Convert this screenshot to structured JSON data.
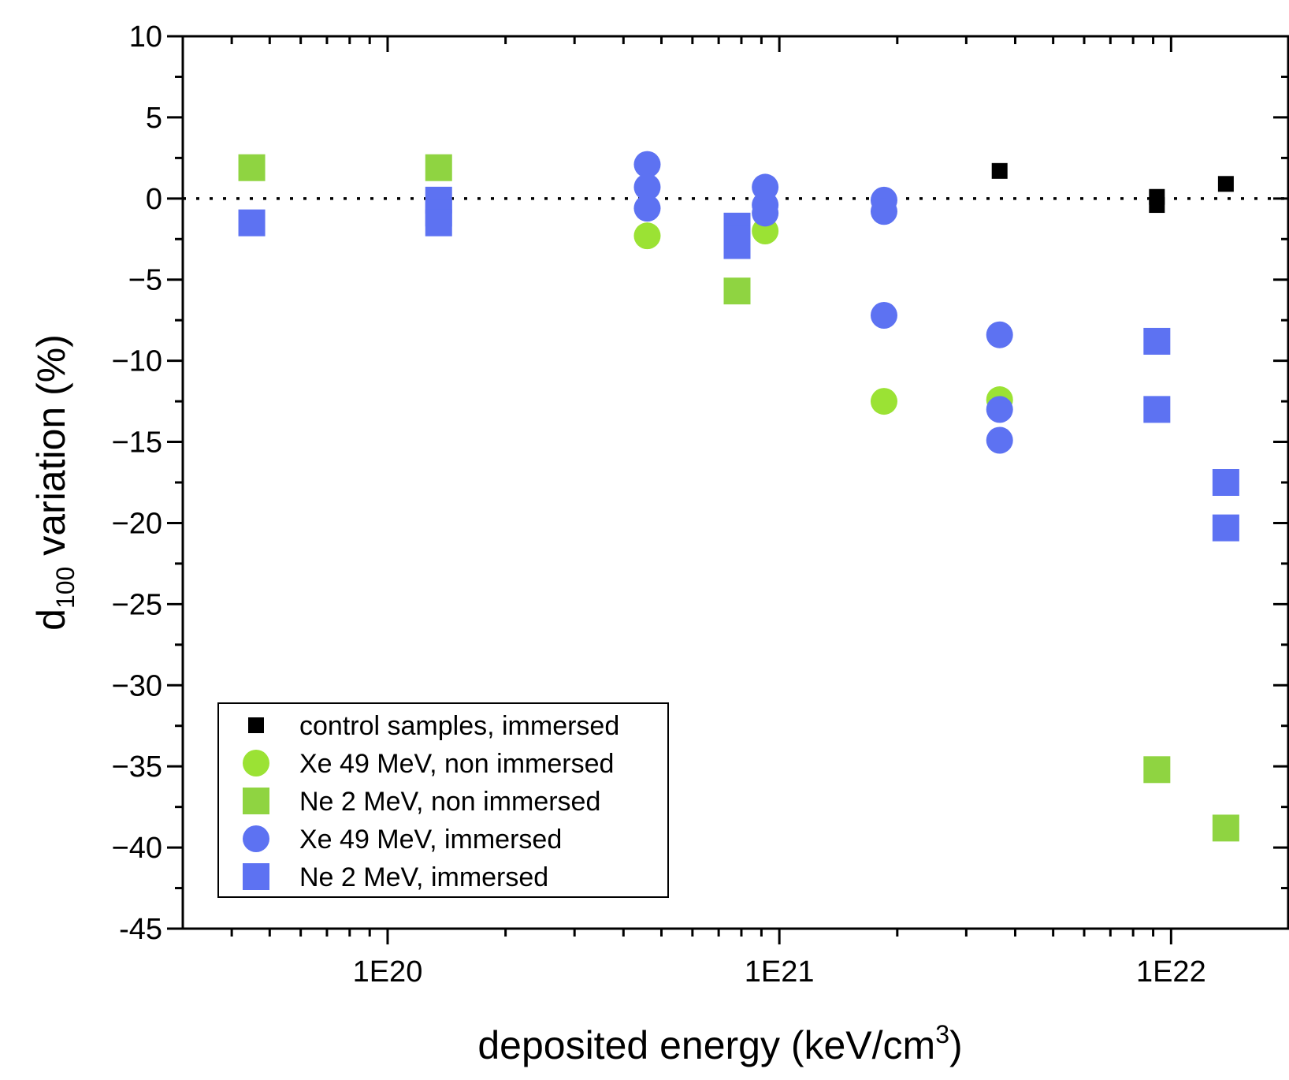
{
  "chart_data": {
    "type": "scatter",
    "xlabel": {
      "main": "deposited energy (keV/cm",
      "sup": "3",
      "tail": ")"
    },
    "ylabel": {
      "main": "d",
      "sub": "100",
      "tail": " variation (%)"
    },
    "x_scale": "log",
    "xlim": [
      3e+19,
      2e+22
    ],
    "ylim": [
      -45,
      10
    ],
    "x_ticks": [
      1e+20,
      1e+21,
      1e+22
    ],
    "x_tick_labels": [
      "1E20",
      "1E21",
      "1E22"
    ],
    "y_ticks": [
      10,
      5,
      0,
      -5,
      -10,
      -15,
      -20,
      -25,
      -30,
      -35,
      -40,
      -45
    ],
    "y_tick_labels": [
      "10",
      "5",
      "0",
      "−5",
      "−10",
      "−15",
      "−20",
      "−25",
      "−30",
      "−35",
      "−40",
      "-45"
    ],
    "reference_line": {
      "y": 0,
      "style": "dotted"
    },
    "legend_position": "bottom-left",
    "series": [
      {
        "name": "control samples, immersed",
        "marker": "square-small",
        "color": "#000000",
        "points": [
          [
            3.65e+21,
            1.7
          ],
          [
            9.2e+21,
            0.1
          ],
          [
            9.2e+21,
            -0.4
          ],
          [
            1.38e+22,
            0.9
          ]
        ]
      },
      {
        "name": "Xe 49 MeV, non immersed",
        "marker": "circle",
        "color": "#9be234",
        "points": [
          [
            4.6e+20,
            -2.3
          ],
          [
            9.2e+20,
            -2.0
          ],
          [
            1.85e+21,
            -12.5
          ],
          [
            3.65e+21,
            -12.4
          ]
        ]
      },
      {
        "name": "Ne 2 MeV, non immersed",
        "marker": "square",
        "color": "#8fd441",
        "points": [
          [
            4.5e+19,
            1.9
          ],
          [
            1.35e+20,
            1.9
          ],
          [
            7.8e+20,
            -5.7
          ],
          [
            9.2e+21,
            -35.2
          ],
          [
            1.38e+22,
            -38.8
          ]
        ]
      },
      {
        "name": "Xe 49 MeV, immersed",
        "marker": "circle",
        "color": "#5d72f2",
        "points": [
          [
            4.6e+20,
            2.1
          ],
          [
            4.6e+20,
            0.7
          ],
          [
            4.6e+20,
            -0.6
          ],
          [
            9.2e+20,
            0.7
          ],
          [
            9.2e+20,
            -0.4
          ],
          [
            9.2e+20,
            -0.9
          ],
          [
            1.85e+21,
            -0.1
          ],
          [
            1.85e+21,
            -0.8
          ],
          [
            1.85e+21,
            -7.2
          ],
          [
            3.65e+21,
            -8.4
          ],
          [
            3.65e+21,
            -13.0
          ],
          [
            3.65e+21,
            -14.9
          ]
        ]
      },
      {
        "name": "Ne 2 MeV, immersed",
        "marker": "square",
        "color": "#5d72f2",
        "points": [
          [
            4.5e+19,
            -1.5
          ],
          [
            1.35e+20,
            -0.1
          ],
          [
            1.35e+20,
            -0.9
          ],
          [
            1.35e+20,
            -1.5
          ],
          [
            7.8e+20,
            -1.7
          ],
          [
            7.8e+20,
            -2.5
          ],
          [
            7.8e+20,
            -2.9
          ],
          [
            9.2e+21,
            -8.8
          ],
          [
            9.2e+21,
            -13.0
          ],
          [
            1.38e+22,
            -17.5
          ],
          [
            1.38e+22,
            -20.3
          ]
        ]
      }
    ]
  }
}
